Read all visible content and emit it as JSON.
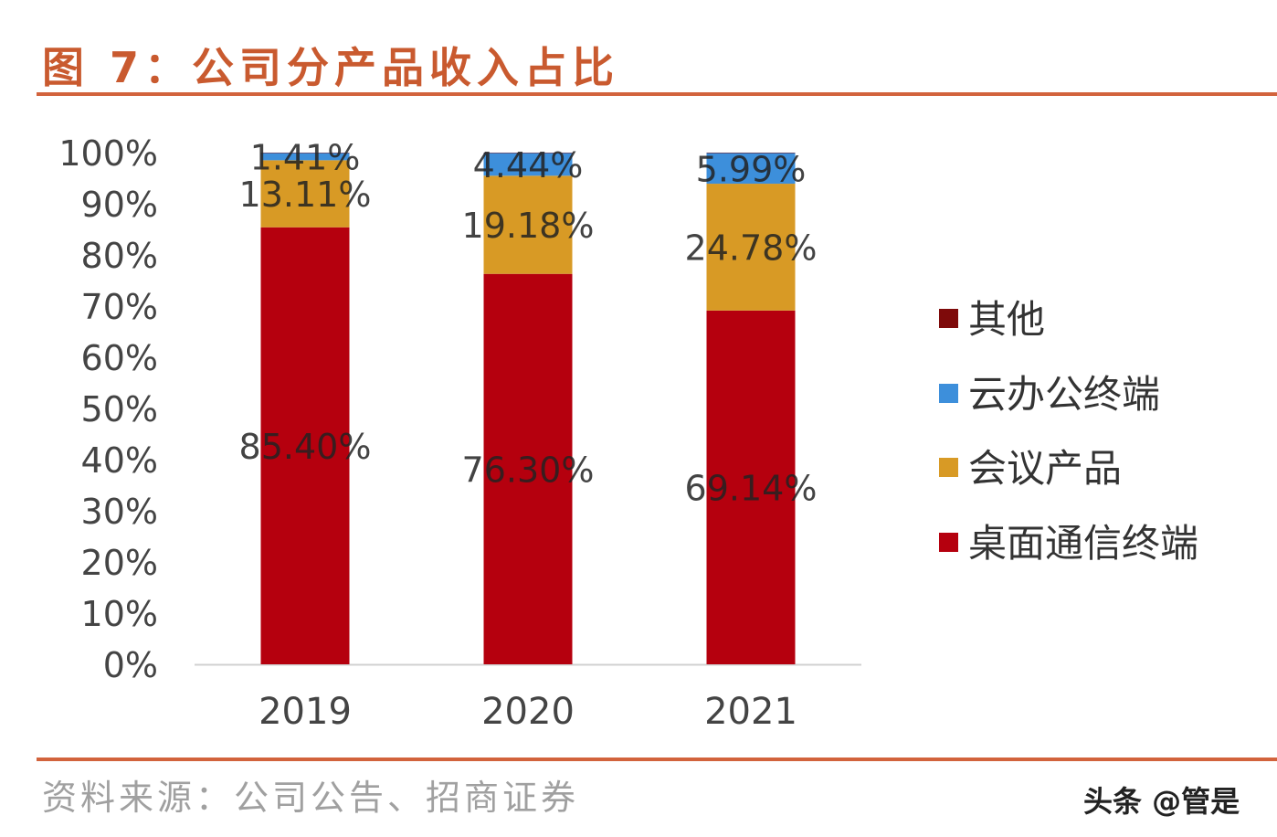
{
  "title": "图 7：公司分产品收入占比",
  "source": "资料来源：公司公告、招商证券",
  "watermark": "头条 @管是",
  "chart_data": {
    "type": "bar",
    "stacked": true,
    "categories": [
      "2019",
      "2020",
      "2021"
    ],
    "ylim": [
      0,
      100
    ],
    "yticks": [
      "0%",
      "10%",
      "20%",
      "30%",
      "40%",
      "50%",
      "60%",
      "70%",
      "80%",
      "90%",
      "100%"
    ],
    "grid": false,
    "legend_position": "right",
    "series": [
      {
        "name": "桌面通信终端",
        "values": [
          85.4,
          76.3,
          69.14
        ],
        "labels": [
          "85.40%",
          "76.30%",
          "69.14%"
        ],
        "color": "#b5000e"
      },
      {
        "name": "会议产品",
        "values": [
          13.11,
          19.18,
          24.78
        ],
        "labels": [
          "13.11%",
          "19.18%",
          "24.78%"
        ],
        "color": "#d89a25"
      },
      {
        "name": "云办公终端",
        "values": [
          1.41,
          4.44,
          5.99
        ],
        "labels": [
          "1.41%",
          "4.44%",
          "5.99%"
        ],
        "color": "#3d8fdb"
      },
      {
        "name": "其他",
        "values": [
          0.08,
          0.08,
          0.09
        ],
        "labels": null,
        "color": "#7e0a0a"
      }
    ],
    "legend_order": [
      "其他",
      "云办公终端",
      "会议产品",
      "桌面通信终端"
    ]
  }
}
